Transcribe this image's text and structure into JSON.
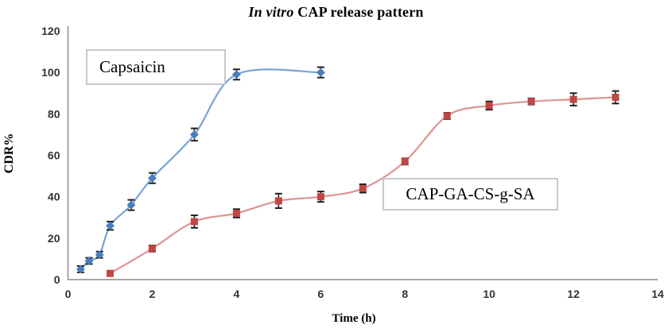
{
  "chart_data": {
    "type": "line",
    "title": {
      "italic": "In vitro",
      "rest": " CAP release pattern"
    },
    "xlabel": "Time (h)",
    "ylabel": "CDR%",
    "xlim": [
      0,
      14
    ],
    "ylim": [
      0,
      120
    ],
    "x_ticks": [
      0,
      2,
      4,
      6,
      8,
      10,
      12,
      14
    ],
    "y_ticks": [
      0,
      20,
      40,
      60,
      80,
      100,
      120
    ],
    "grid": false,
    "legend_position": "floating text boxes inside plot",
    "axis_color": "#a6a6a6",
    "error_bar_color": "#1f1f1f",
    "series": [
      {
        "name": "Capsaicin",
        "marker": "diamond",
        "marker_color": "#4a7ebb",
        "line_color": "#7aa3d4",
        "x": [
          0.3,
          0.5,
          0.75,
          1,
          1.5,
          2,
          3,
          4,
          6
        ],
        "y": [
          5,
          9,
          12,
          26,
          36,
          49,
          70,
          99,
          100
        ],
        "yerr": [
          1.5,
          1.5,
          1.5,
          2,
          2.5,
          2.5,
          3,
          2.5,
          2.5
        ]
      },
      {
        "name": "CAP-GA-CS-g-SA",
        "marker": "square",
        "marker_color": "#bf4645",
        "line_color": "#dc9593",
        "x": [
          1,
          2,
          3,
          4,
          5,
          6,
          7,
          8,
          9,
          10,
          11,
          12,
          13
        ],
        "y": [
          3,
          15,
          28,
          32,
          38,
          40,
          44,
          57,
          79,
          84,
          86,
          87,
          88
        ],
        "yerr": [
          1,
          1.5,
          3,
          2,
          3.5,
          2.5,
          2,
          1.5,
          1.5,
          2,
          1.5,
          3,
          3
        ]
      }
    ],
    "annotations": [
      {
        "text": "Capsaicin"
      },
      {
        "text": "CAP-GA-CS-g-SA"
      }
    ]
  }
}
